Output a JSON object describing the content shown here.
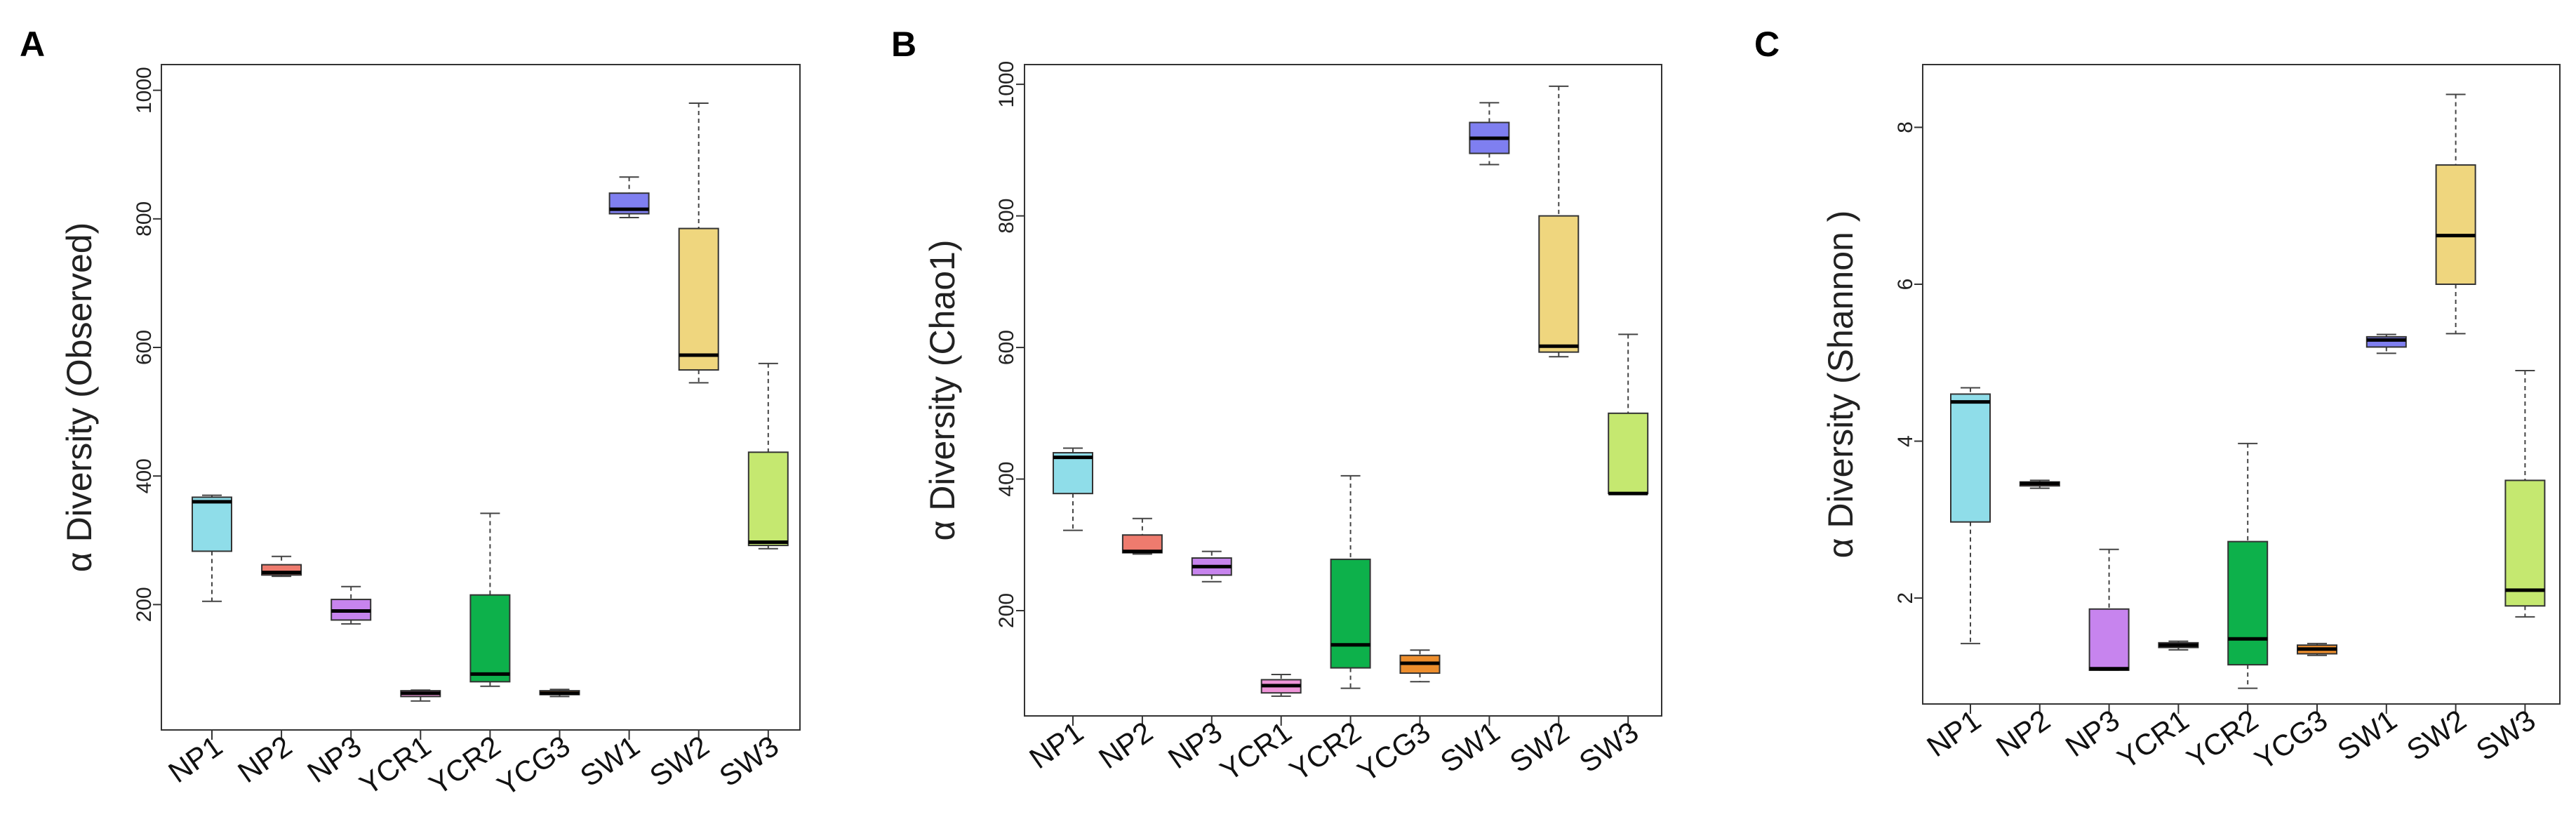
{
  "chart_data": [
    {
      "panel": "A",
      "type": "boxplot",
      "ylabel": "α Diversity (Observed)",
      "ylim": [
        5,
        1040
      ],
      "yticks": [
        200,
        400,
        600,
        800,
        1000
      ],
      "categories": [
        "NP1",
        "NP2",
        "NP3",
        "YCR1",
        "YCR2",
        "YCG3",
        "SW1",
        "SW2",
        "SW3"
      ],
      "colors": [
        "#8fdde9",
        "#ee7b6e",
        "#c784ee",
        "#ee94d8",
        "#0db14b",
        "#ed8e2d",
        "#7f7ff0",
        "#efd67e",
        "#c5e870"
      ],
      "boxes": [
        {
          "min": 205,
          "q1": 283,
          "median": 360,
          "q3": 367,
          "max": 370
        },
        {
          "min": 244,
          "q1": 246,
          "median": 250,
          "q3": 262,
          "max": 275
        },
        {
          "min": 170,
          "q1": 176,
          "median": 190,
          "q3": 208,
          "max": 228
        },
        {
          "min": 50,
          "q1": 57,
          "median": 62,
          "q3": 66,
          "max": 67
        },
        {
          "min": 73,
          "q1": 80,
          "median": 92,
          "q3": 215,
          "max": 342
        },
        {
          "min": 57,
          "q1": 60,
          "median": 62,
          "q3": 66,
          "max": 68
        },
        {
          "min": 802,
          "q1": 808,
          "median": 815,
          "q3": 840,
          "max": 865
        },
        {
          "min": 545,
          "q1": 565,
          "median": 588,
          "q3": 785,
          "max": 980
        },
        {
          "min": 287,
          "q1": 292,
          "median": 297,
          "q3": 437,
          "max": 575
        }
      ]
    },
    {
      "panel": "B",
      "type": "boxplot",
      "ylabel": "α Diversity (Chao1)",
      "ylim": [
        40,
        1030
      ],
      "yticks": [
        200,
        400,
        600,
        800,
        1000
      ],
      "categories": [
        "NP1",
        "NP2",
        "NP3",
        "YCR1",
        "YCR2",
        "YCG3",
        "SW1",
        "SW2",
        "SW3"
      ],
      "colors": [
        "#8fdde9",
        "#ee7b6e",
        "#c784ee",
        "#ee94d8",
        "#0db14b",
        "#ed8e2d",
        "#7f7ff0",
        "#efd67e",
        "#c5e870"
      ],
      "boxes": [
        {
          "min": 322,
          "q1": 378,
          "median": 433,
          "q3": 440,
          "max": 447
        },
        {
          "min": 286,
          "q1": 288,
          "median": 290,
          "q3": 315,
          "max": 340
        },
        {
          "min": 244,
          "q1": 254,
          "median": 267,
          "q3": 280,
          "max": 290
        },
        {
          "min": 70,
          "q1": 75,
          "median": 86,
          "q3": 95,
          "max": 103
        },
        {
          "min": 82,
          "q1": 113,
          "median": 148,
          "q3": 278,
          "max": 405
        },
        {
          "min": 92,
          "q1": 105,
          "median": 120,
          "q3": 132,
          "max": 140
        },
        {
          "min": 878,
          "q1": 895,
          "median": 918,
          "q3": 942,
          "max": 972
        },
        {
          "min": 586,
          "q1": 593,
          "median": 602,
          "q3": 800,
          "max": 997
        },
        {
          "min": 377,
          "q1": 378,
          "median": 378,
          "q3": 500,
          "max": 620
        }
      ]
    },
    {
      "panel": "C",
      "type": "boxplot",
      "ylabel": "α Diversity (Shannon )",
      "ylim": [
        0.65,
        8.8
      ],
      "yticks": [
        2,
        4,
        6,
        8
      ],
      "categories": [
        "NP1",
        "NP2",
        "NP3",
        "YCR1",
        "YCR2",
        "YCG3",
        "SW1",
        "SW2",
        "SW3"
      ],
      "colors": [
        "#8fdde9",
        "#ee7b6e",
        "#c784ee",
        "#ee94d8",
        "#0db14b",
        "#ed8e2d",
        "#7f7ff0",
        "#efd67e",
        "#c5e870"
      ],
      "boxes": [
        {
          "min": 1.42,
          "q1": 2.97,
          "median": 4.5,
          "q3": 4.6,
          "max": 4.68
        },
        {
          "min": 3.4,
          "q1": 3.43,
          "median": 3.46,
          "q3": 3.48,
          "max": 3.5
        },
        {
          "min": 1.08,
          "q1": 1.08,
          "median": 1.1,
          "q3": 1.86,
          "max": 2.62
        },
        {
          "min": 1.34,
          "q1": 1.37,
          "median": 1.4,
          "q3": 1.43,
          "max": 1.45
        },
        {
          "min": 0.85,
          "q1": 1.15,
          "median": 1.48,
          "q3": 2.72,
          "max": 3.97
        },
        {
          "min": 1.27,
          "q1": 1.29,
          "median": 1.35,
          "q3": 1.4,
          "max": 1.42
        },
        {
          "min": 5.12,
          "q1": 5.2,
          "median": 5.29,
          "q3": 5.33,
          "max": 5.36
        },
        {
          "min": 5.37,
          "q1": 6.0,
          "median": 6.62,
          "q3": 7.52,
          "max": 8.42
        },
        {
          "min": 1.76,
          "q1": 1.9,
          "median": 2.1,
          "q3": 3.5,
          "max": 4.9
        }
      ]
    }
  ]
}
